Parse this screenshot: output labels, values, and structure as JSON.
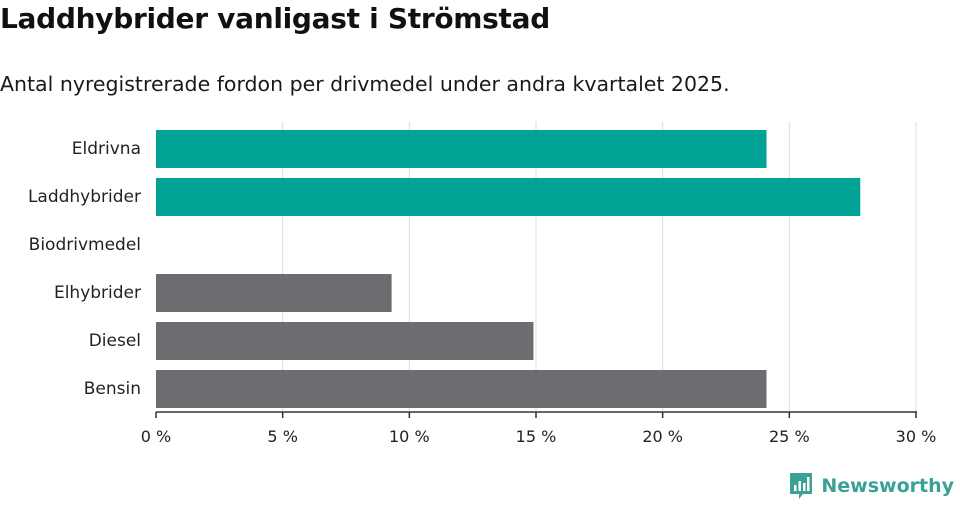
{
  "header": {
    "title": "Laddhybrider vanligast i Strömstad",
    "subtitle": "Antal nyregistrerade fordon per drivmedel under andra kvartalet 2025."
  },
  "colors": {
    "highlight": "#00a396",
    "default": "#6d6c70",
    "grid": "#dddddd",
    "axis": "#333333",
    "brand": "#3aa197"
  },
  "chart_data": {
    "type": "bar",
    "orientation": "horizontal",
    "title": "Laddhybrider vanligast i Strömstad",
    "subtitle": "Antal nyregistrerade fordon per drivmedel under andra kvartalet 2025.",
    "categories": [
      "Eldrivna",
      "Laddhybrider",
      "Biodrivmedel",
      "Elhybrider",
      "Diesel",
      "Bensin"
    ],
    "values": [
      24.1,
      27.8,
      0,
      9.3,
      14.9,
      24.1
    ],
    "bar_colors": [
      "#00a396",
      "#00a396",
      "#6d6c70",
      "#6d6c70",
      "#6d6c70",
      "#6d6c70"
    ],
    "xlim": [
      0,
      30
    ],
    "xticks": [
      0,
      5,
      10,
      15,
      20,
      25,
      30
    ],
    "xtick_labels": [
      "0 %",
      "5 %",
      "10 %",
      "15 %",
      "20 %",
      "25 %",
      "30 %"
    ],
    "xlabel": "",
    "ylabel": "",
    "grid": "vertical",
    "legend": "none"
  },
  "footer": {
    "brand": "Newsworthy",
    "brand_icon": "bar-chart-speech-bubble-icon"
  }
}
